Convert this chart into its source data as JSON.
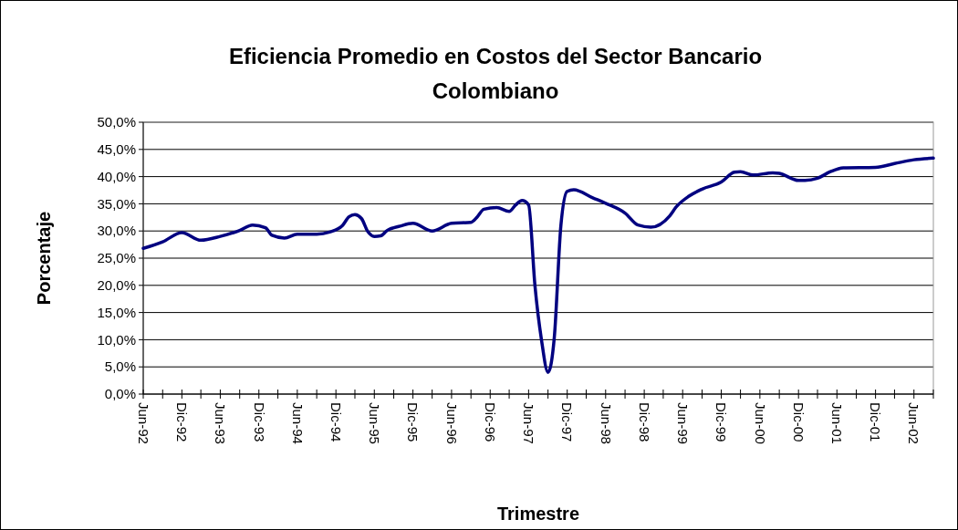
{
  "chart_data": {
    "type": "line",
    "title": "Eficiencia Promedio en Costos del Sector Bancario Colombiano",
    "xlabel": "Trimestre",
    "ylabel": "Porcentaje",
    "x": [
      "1992-06",
      "1992-09",
      "1992-12",
      "1993-03",
      "1993-06",
      "1993-09",
      "1993-11",
      "1994-01",
      "1994-02",
      "1994-04",
      "1994-06",
      "1994-09",
      "1994-11",
      "1995-01",
      "1995-02",
      "1995-03",
      "1995-04",
      "1995-05",
      "1995-06",
      "1995-07",
      "1995-08",
      "1995-10",
      "1995-12",
      "1996-03",
      "1996-06",
      "1996-09",
      "1996-10",
      "1996-11",
      "1997-01",
      "1997-03",
      "1997-04",
      "1997-05",
      "1997-06",
      "1997-07",
      "1997-08",
      "1997-09",
      "1997-10",
      "1997-11",
      "1997-12",
      "1998-01",
      "1998-04",
      "1998-06",
      "1998-09",
      "1998-11",
      "1999-01",
      "1999-04",
      "1999-05",
      "1999-07",
      "1999-09",
      "1999-12",
      "2000-02",
      "2000-03",
      "2000-05",
      "2000-08",
      "2000-09",
      "2000-12",
      "2001-01",
      "2001-03",
      "2001-05",
      "2001-07",
      "2001-12",
      "2002-03",
      "2002-06",
      "2002-09"
    ],
    "series": [
      {
        "color": "#000080",
        "values": [
          26.8,
          28.0,
          29.7,
          28.3,
          29.0,
          30.1,
          31.1,
          30.6,
          29.2,
          28.7,
          29.4,
          29.4,
          29.8,
          31.0,
          32.6,
          33.0,
          32.3,
          29.9,
          29.0,
          29.1,
          30.1,
          30.9,
          31.4,
          30.0,
          31.4,
          31.6,
          32.6,
          34.0,
          34.3,
          33.6,
          34.8,
          35.6,
          34.8,
          20.0,
          10.0,
          4.0,
          10.5,
          31.0,
          37.3,
          37.6,
          36.1,
          35.1,
          33.3,
          31.1,
          30.7,
          32.8,
          34.4,
          36.4,
          37.7,
          39.0,
          40.8,
          40.9,
          40.3,
          40.7,
          40.6,
          39.3,
          39.3,
          39.7,
          40.9,
          41.6,
          41.7,
          42.4,
          43.1,
          43.4
        ]
      }
    ],
    "xlim": [
      "1992-06",
      "2002-09"
    ],
    "xticks": [
      {
        "value": "1992-06",
        "label": "Jun-92"
      },
      {
        "value": "1992-09",
        "label": null
      },
      {
        "value": "1992-12",
        "label": "Dic-92"
      },
      {
        "value": "1993-03",
        "label": null
      },
      {
        "value": "1993-06",
        "label": "Jun-93"
      },
      {
        "value": "1993-09",
        "label": null
      },
      {
        "value": "1993-12",
        "label": "Dic-93"
      },
      {
        "value": "1994-03",
        "label": null
      },
      {
        "value": "1994-06",
        "label": "Jun-94"
      },
      {
        "value": "1994-09",
        "label": null
      },
      {
        "value": "1994-12",
        "label": "Dic-94"
      },
      {
        "value": "1995-03",
        "label": null
      },
      {
        "value": "1995-06",
        "label": "Jun-95"
      },
      {
        "value": "1995-09",
        "label": null
      },
      {
        "value": "1995-12",
        "label": "Dic-95"
      },
      {
        "value": "1996-03",
        "label": null
      },
      {
        "value": "1996-06",
        "label": "Jun-96"
      },
      {
        "value": "1996-09",
        "label": null
      },
      {
        "value": "1996-12",
        "label": "Dic-96"
      },
      {
        "value": "1997-03",
        "label": null
      },
      {
        "value": "1997-06",
        "label": "Jun-97"
      },
      {
        "value": "1997-09",
        "label": null
      },
      {
        "value": "1997-12",
        "label": "Dic-97"
      },
      {
        "value": "1998-03",
        "label": null
      },
      {
        "value": "1998-06",
        "label": "Jun-98"
      },
      {
        "value": "1998-09",
        "label": null
      },
      {
        "value": "1998-12",
        "label": "Dic-98"
      },
      {
        "value": "1999-03",
        "label": null
      },
      {
        "value": "1999-06",
        "label": "Jun-99"
      },
      {
        "value": "1999-09",
        "label": null
      },
      {
        "value": "1999-12",
        "label": "Dic-99"
      },
      {
        "value": "2000-03",
        "label": null
      },
      {
        "value": "2000-06",
        "label": "Jun-00"
      },
      {
        "value": "2000-09",
        "label": null
      },
      {
        "value": "2000-12",
        "label": "Dic-00"
      },
      {
        "value": "2001-03",
        "label": null
      },
      {
        "value": "2001-06",
        "label": "Jun-01"
      },
      {
        "value": "2001-09",
        "label": null
      },
      {
        "value": "2001-12",
        "label": "Dic-01"
      },
      {
        "value": "2002-03",
        "label": null
      },
      {
        "value": "2002-06",
        "label": "Jun-02"
      },
      {
        "value": "2002-09",
        "label": null
      }
    ],
    "ylim": [
      0,
      50
    ],
    "yticks": [
      {
        "value": 0,
        "label": "0,0%"
      },
      {
        "value": 5,
        "label": "5,0%"
      },
      {
        "value": 10,
        "label": "10,0%"
      },
      {
        "value": 15,
        "label": "15,0%"
      },
      {
        "value": 20,
        "label": "20,0%"
      },
      {
        "value": 25,
        "label": "25,0%"
      },
      {
        "value": 30,
        "label": "30,0%"
      },
      {
        "value": 35,
        "label": "35,0%"
      },
      {
        "value": 40,
        "label": "40,0%"
      },
      {
        "value": 45,
        "label": "45,0%"
      },
      {
        "value": 50,
        "label": "50,0%"
      }
    ],
    "grid": "y",
    "marker": "none",
    "line_style": "solid"
  }
}
